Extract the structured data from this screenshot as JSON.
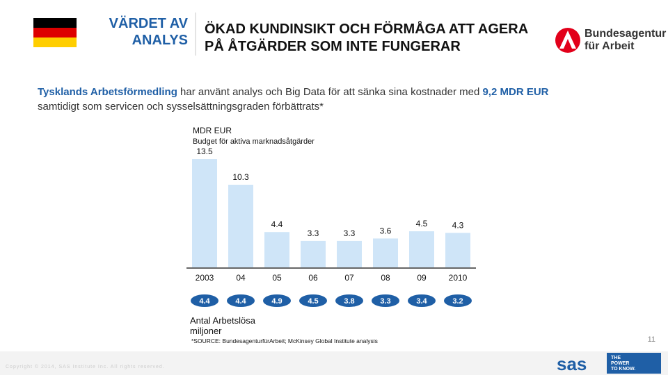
{
  "header": {
    "section": [
      "VÄRDET AV",
      "ANALYS"
    ],
    "title": [
      "ÖKAD KUNDINSIKT OCH FÖRMÅGA ATT AGERA",
      "PÅ ÅTGÄRDER SOM INTE FUNGERAR"
    ],
    "logo": [
      "Bundesagentur",
      "für Arbeit"
    ]
  },
  "lead": {
    "line1": [
      "Tysklands Arbetsförmedling",
      " har använt analys och Big Data för att sänka sina kostnader med ",
      "9,2 MDR EUR"
    ],
    "line2": "samtidigt som servicen och sysselsättningsgraden förbättrats*"
  },
  "chart_data": {
    "type": "bar",
    "unit": "MDR EUR",
    "subtitle": "Budget för aktiva marknadsåtgärder",
    "categories": [
      "2003",
      "04",
      "05",
      "06",
      "07",
      "08",
      "09",
      "2010"
    ],
    "values": [
      13.5,
      10.3,
      4.4,
      3.3,
      3.3,
      3.6,
      4.5,
      4.3
    ],
    "color": "#cfe5f8"
  },
  "unemployed": {
    "label": [
      "Antal Arbetslösa",
      "miljoner"
    ],
    "values": [
      4.4,
      4.4,
      4.9,
      4.5,
      3.8,
      3.3,
      3.4,
      3.2
    ],
    "color": "#1f5fa6"
  },
  "footer": {
    "source": "*SOURCE: BundesagenturfürArbeit; McKinsey Global Institute analysis",
    "page": "11",
    "copyright": "Copyright © 2014, SAS Institute Inc. All rights reserved.",
    "brand": "sas",
    "tagline": [
      "THE",
      "POWER",
      "TO KNOW."
    ]
  }
}
